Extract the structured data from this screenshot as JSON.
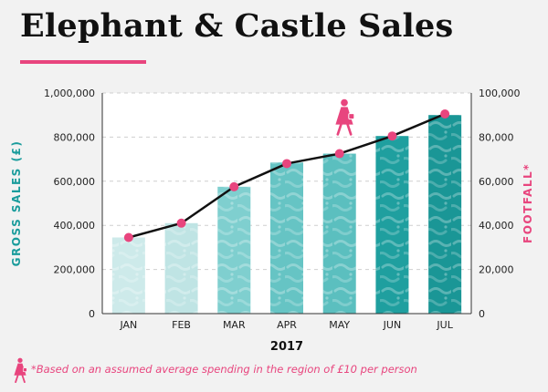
{
  "title": "Elephant & Castle Sales",
  "footnote": "*Based on an assumed average spending in the region of £10 per person",
  "colors": {
    "accent": "#e8457e",
    "teal_light": "#bfe6e6",
    "teal_mid": "#5fc2c2",
    "teal_dark": "#1a9c9c",
    "line": "#111111"
  },
  "chart_data": {
    "type": "bar",
    "categories": [
      "JAN",
      "FEB",
      "MAR",
      "APR",
      "MAY",
      "JUN",
      "JUL"
    ],
    "series": [
      {
        "name": "GROSS SALES (£)",
        "type": "bar",
        "axis": "left",
        "values": [
          345000,
          410000,
          575000,
          685000,
          725000,
          805000,
          900000
        ]
      },
      {
        "name": "FOOTFALL*",
        "type": "line",
        "axis": "right",
        "values": [
          34500,
          41000,
          57500,
          68000,
          72500,
          80500,
          90500
        ]
      }
    ],
    "xlabel": "2017",
    "ylabel": "GROSS SALES (£)",
    "ylabel_right": "FOOTFALL*",
    "ylim": [
      0,
      1000000
    ],
    "ylim_right": [
      0,
      100000
    ],
    "yticks": [
      "0",
      "200,000",
      "400,000",
      "600,000",
      "800,000",
      "1,000,000"
    ],
    "yticks_right": [
      "0",
      "20,000",
      "40,000",
      "60,000",
      "80,000",
      "100,000"
    ],
    "grid": "horizontal-dashed"
  }
}
